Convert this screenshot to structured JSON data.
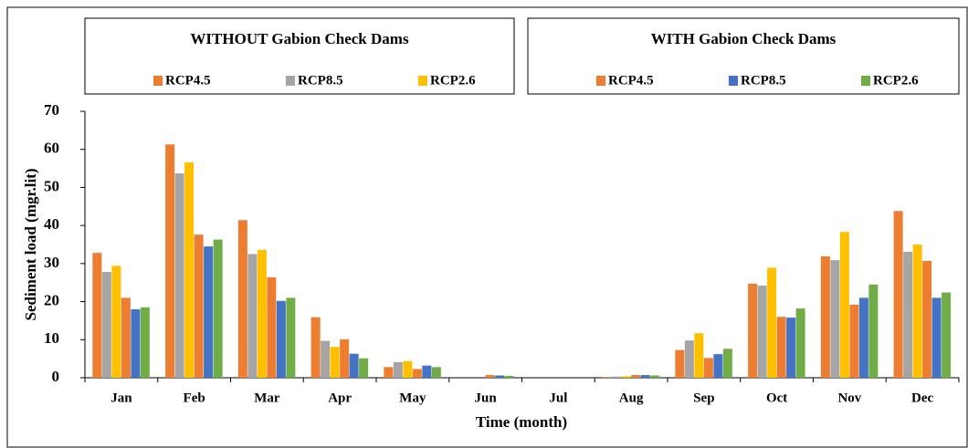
{
  "chart_data": {
    "type": "bar",
    "legend_titles": [
      "WITHOUT Gabion Check Dams",
      "WITH Gabion Check Dams"
    ],
    "x_label": "Time (month)",
    "y_label": "Sediment load (mgr.lit)",
    "categories": [
      "Jan",
      "Feb",
      "Mar",
      "Apr",
      "May",
      "Jun",
      "Jul",
      "Aug",
      "Sep",
      "Oct",
      "Nov",
      "Dec"
    ],
    "series": [
      {
        "name": "RCP4.5",
        "color": "#ed7d31",
        "group": 0,
        "values": [
          32.8,
          61.3,
          41.4,
          15.9,
          2.8,
          0,
          0,
          0.2,
          7.3,
          24.7,
          31.9,
          43.8
        ]
      },
      {
        "name": "RCP8.5",
        "color": "#a5a5a5",
        "group": 0,
        "values": [
          27.8,
          53.7,
          32.5,
          9.7,
          4.1,
          0,
          0,
          0.3,
          9.8,
          24.2,
          30.9,
          33.1
        ]
      },
      {
        "name": "RCP2.6",
        "color": "#ffc000",
        "group": 0,
        "values": [
          29.4,
          56.6,
          33.6,
          8.1,
          4.4,
          0,
          0,
          0.4,
          11.7,
          28.9,
          38.3,
          35.0
        ]
      },
      {
        "name": "RCP4.5",
        "color": "#ed7d31",
        "group": 1,
        "values": [
          21.0,
          37.6,
          26.4,
          10.1,
          2.3,
          0.7,
          0,
          0.7,
          5.2,
          16.0,
          19.2,
          30.7
        ]
      },
      {
        "name": "RCP8.5",
        "color": "#4472c4",
        "group": 1,
        "values": [
          18.0,
          34.5,
          20.2,
          6.3,
          3.2,
          0.6,
          0,
          0.7,
          6.2,
          15.8,
          21.0,
          21.0
        ]
      },
      {
        "name": "RCP2.6",
        "color": "#70ad47",
        "group": 1,
        "values": [
          18.5,
          36.3,
          21.0,
          5.1,
          2.8,
          0.5,
          0,
          0.6,
          7.6,
          18.2,
          24.5,
          22.4
        ]
      }
    ],
    "ylim": [
      0,
      70
    ],
    "yticks": [
      0,
      10,
      20,
      30,
      40,
      50,
      60,
      70
    ],
    "grid": false
  }
}
